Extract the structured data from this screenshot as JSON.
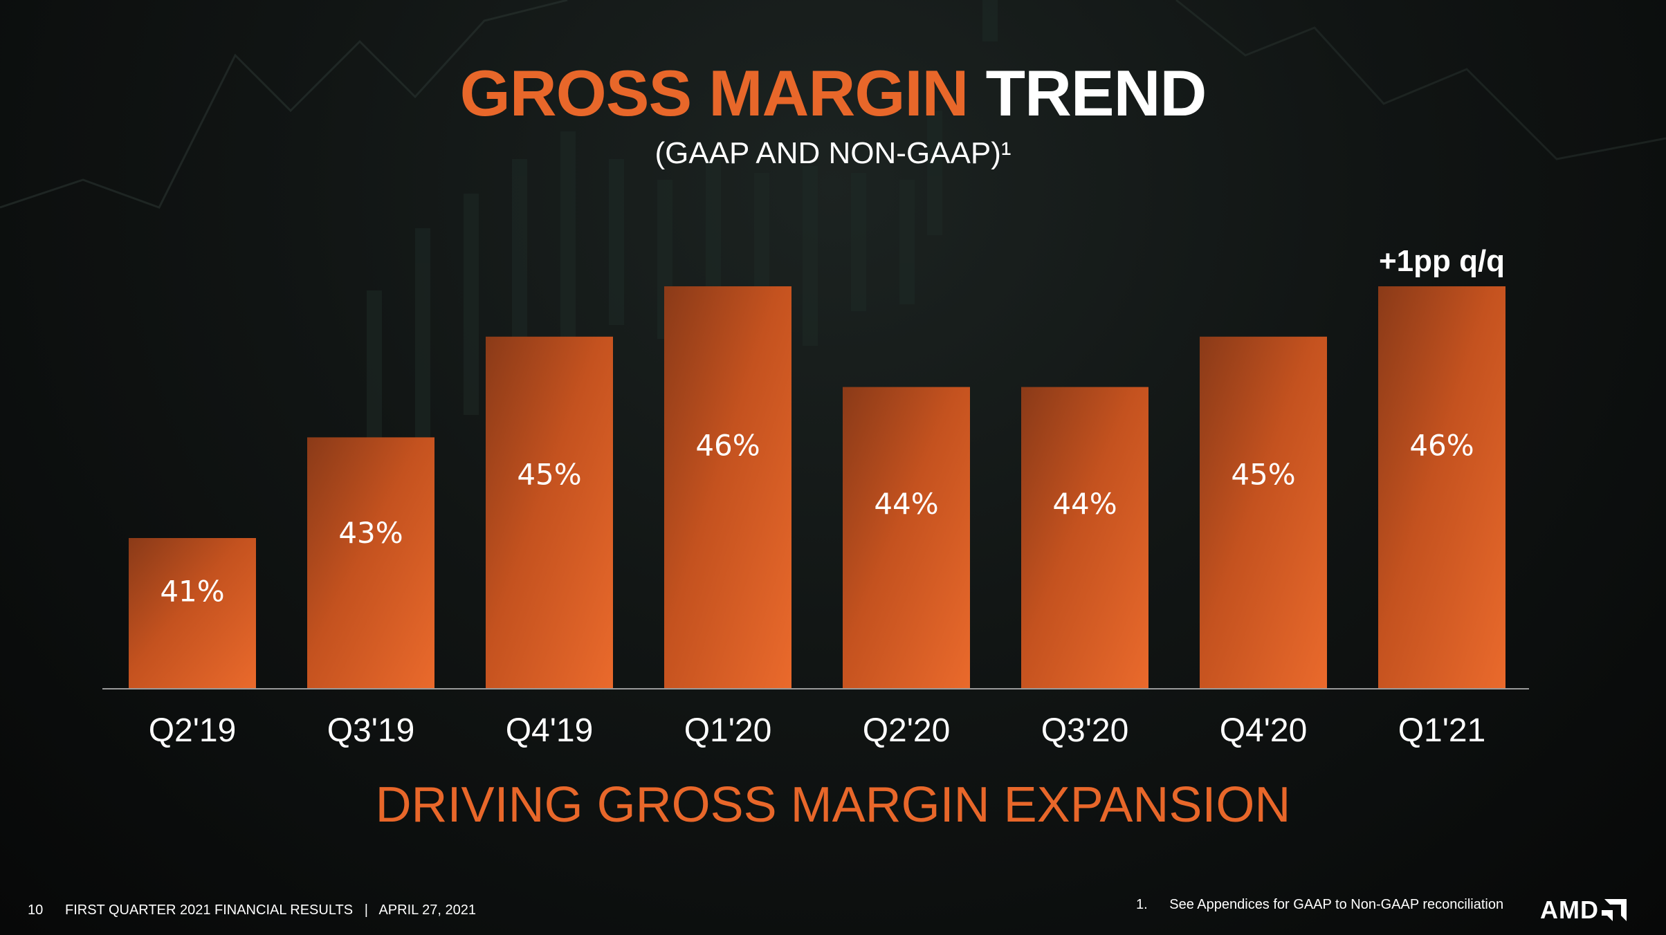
{
  "slide": {
    "title_accent": "GROSS MARGIN",
    "title_rest": "TREND",
    "subtitle": "(GAAP AND NON-GAAP)¹",
    "tagline": "DRIVING GROSS MARGIN EXPANSION",
    "footer": {
      "page_number": "10",
      "text": "FIRST QUARTER 2021 FINANCIAL RESULTS   |   APRIL 27, 2021"
    },
    "footnote": {
      "number": "1.",
      "text": "See Appendices for GAAP to Non-GAAP reconciliation"
    },
    "logo": "AMD"
  },
  "colors": {
    "accent": "#e8672a",
    "bar_light": "#e8672a",
    "bar_dark": "#8a3a18",
    "background": "#0d1110"
  },
  "chart_data": {
    "type": "bar",
    "categories": [
      "Q2'19",
      "Q3'19",
      "Q4'19",
      "Q1'20",
      "Q2'20",
      "Q3'20",
      "Q4'20",
      "Q1'21"
    ],
    "values": [
      41,
      43,
      45,
      46,
      44,
      44,
      45,
      46
    ],
    "data_labels": [
      "41%",
      "43%",
      "45%",
      "46%",
      "44%",
      "44%",
      "45%",
      "46%"
    ],
    "annotation": {
      "category": "Q1'21",
      "text": "+1pp q/q"
    },
    "unit": "%",
    "grid": false,
    "axes_visible": false
  }
}
